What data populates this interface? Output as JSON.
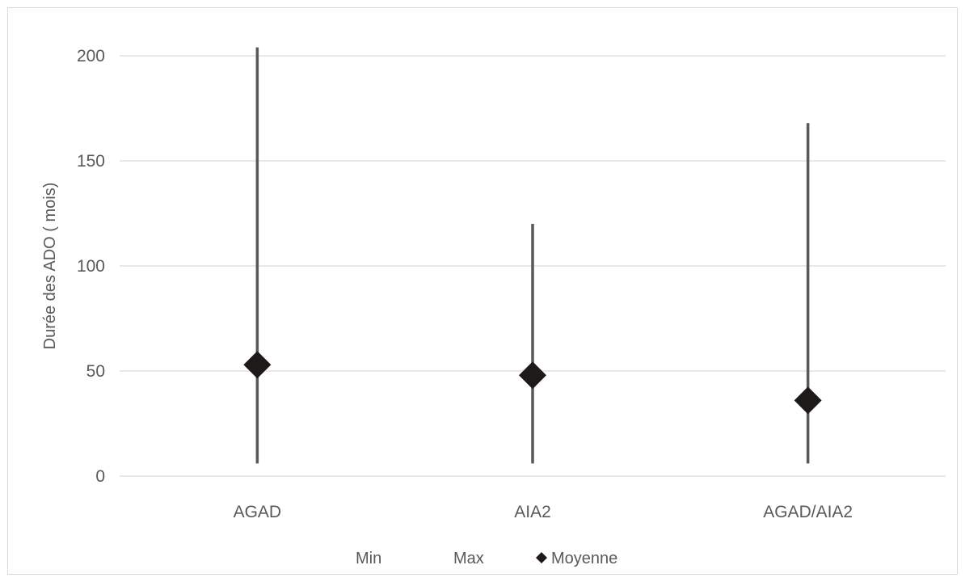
{
  "chart_data": {
    "type": "scatter",
    "title": "",
    "xlabel": "",
    "ylabel": "Durée des ADO ( mois)",
    "ylim": [
      0,
      200
    ],
    "yticks": [
      0,
      50,
      100,
      150,
      200
    ],
    "grid": true,
    "legend_position": "bottom",
    "categories": [
      "AGAD",
      "AIA2",
      "AGAD/AIA2"
    ],
    "series": [
      {
        "name": "Min",
        "values": [
          6,
          6,
          6
        ]
      },
      {
        "name": "Max",
        "values": [
          204,
          120,
          168
        ]
      },
      {
        "name": "Moyenne",
        "values": [
          53,
          48,
          36
        ]
      }
    ],
    "colors": {
      "range_line": "#595959",
      "marker": "#1f1a1a",
      "grid": "#d9d9d9",
      "text": "#595959"
    }
  }
}
